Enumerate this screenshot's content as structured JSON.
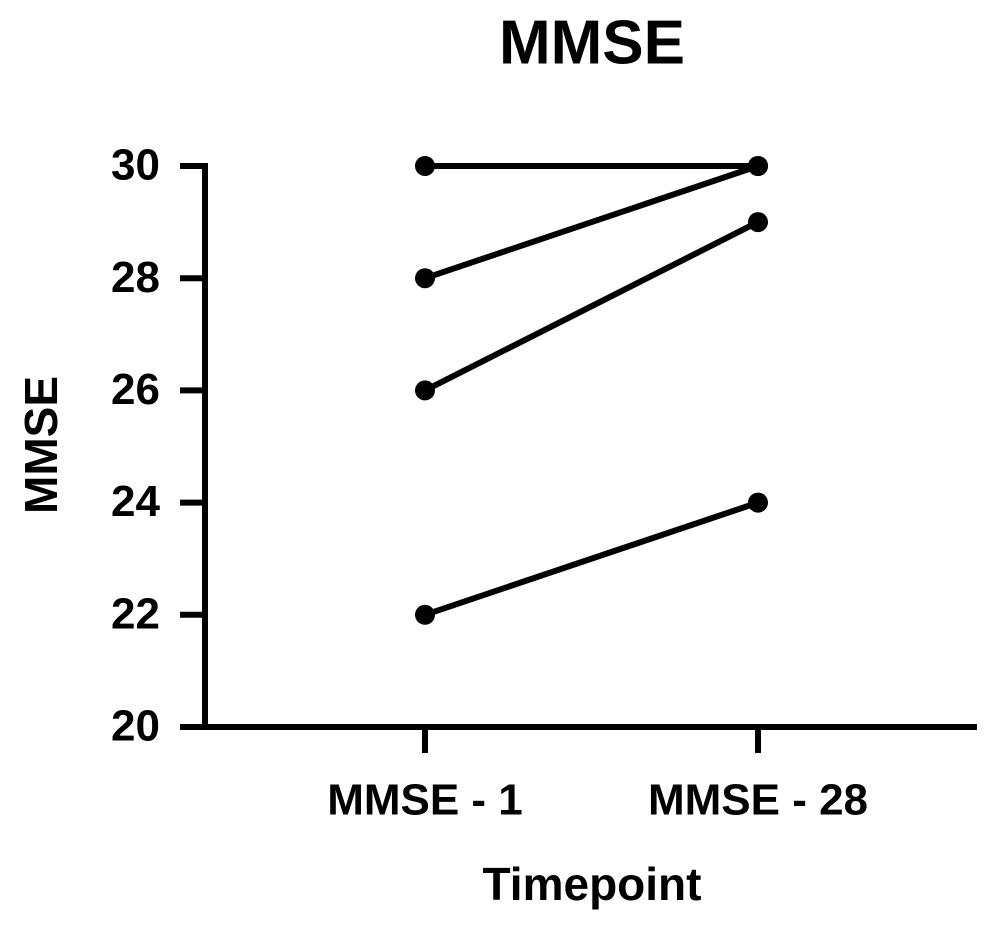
{
  "chart_data": {
    "type": "line",
    "title": "MMSE",
    "x_label": "Timepoint",
    "y_label": "MMSE",
    "categories": [
      "MMSE - 1",
      "MMSE - 28"
    ],
    "series": [
      {
        "color": "#000000",
        "values": [
          30,
          30
        ]
      },
      {
        "color": "#000000",
        "values": [
          28,
          30
        ]
      },
      {
        "color": "#000000",
        "values": [
          26,
          29
        ]
      },
      {
        "color": "#000000",
        "values": [
          22,
          24
        ]
      }
    ],
    "ylim": [
      20,
      30
    ],
    "yticks": [
      20,
      22,
      24,
      26,
      28,
      30
    ],
    "grid": false
  }
}
